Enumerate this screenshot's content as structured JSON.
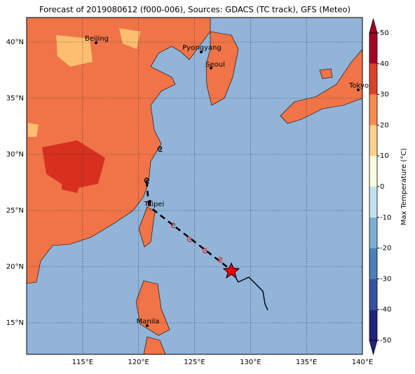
{
  "title": "Forecast of 2019080612 (f000-006), Sources: GDACS (TC track), GFS (Meteo)",
  "lon_ticks": [
    {
      "value": 115,
      "label": "115°E"
    },
    {
      "value": 120,
      "label": "120°E"
    },
    {
      "value": 125,
      "label": "125°E"
    },
    {
      "value": 130,
      "label": "130°E"
    },
    {
      "value": 135,
      "label": "135°E"
    },
    {
      "value": 140,
      "label": "140°E"
    }
  ],
  "lat_ticks": [
    {
      "value": 15,
      "label": "15°N"
    },
    {
      "value": 20,
      "label": "20°N"
    },
    {
      "value": 25,
      "label": "25°N"
    },
    {
      "value": 30,
      "label": "30°N"
    },
    {
      "value": 35,
      "label": "35°N"
    },
    {
      "value": 40,
      "label": "40°N"
    }
  ],
  "cities": [
    "Beijing",
    "Pyongyang",
    "Seoul",
    "Tokyo",
    "Taipei",
    "Manila"
  ],
  "colorbar": {
    "label": "Max Temperature (°C)",
    "ticks": [
      -50,
      -40,
      -30,
      -20,
      -10,
      0,
      10,
      20,
      30,
      40,
      50
    ],
    "colors": [
      "#23237f",
      "#3550a3",
      "#4a80b8",
      "#7bb0d3",
      "#c0e2ee",
      "#fbfde0",
      "#fdd28b",
      "#f98b52",
      "#dd4129",
      "#a50026"
    ]
  }
}
